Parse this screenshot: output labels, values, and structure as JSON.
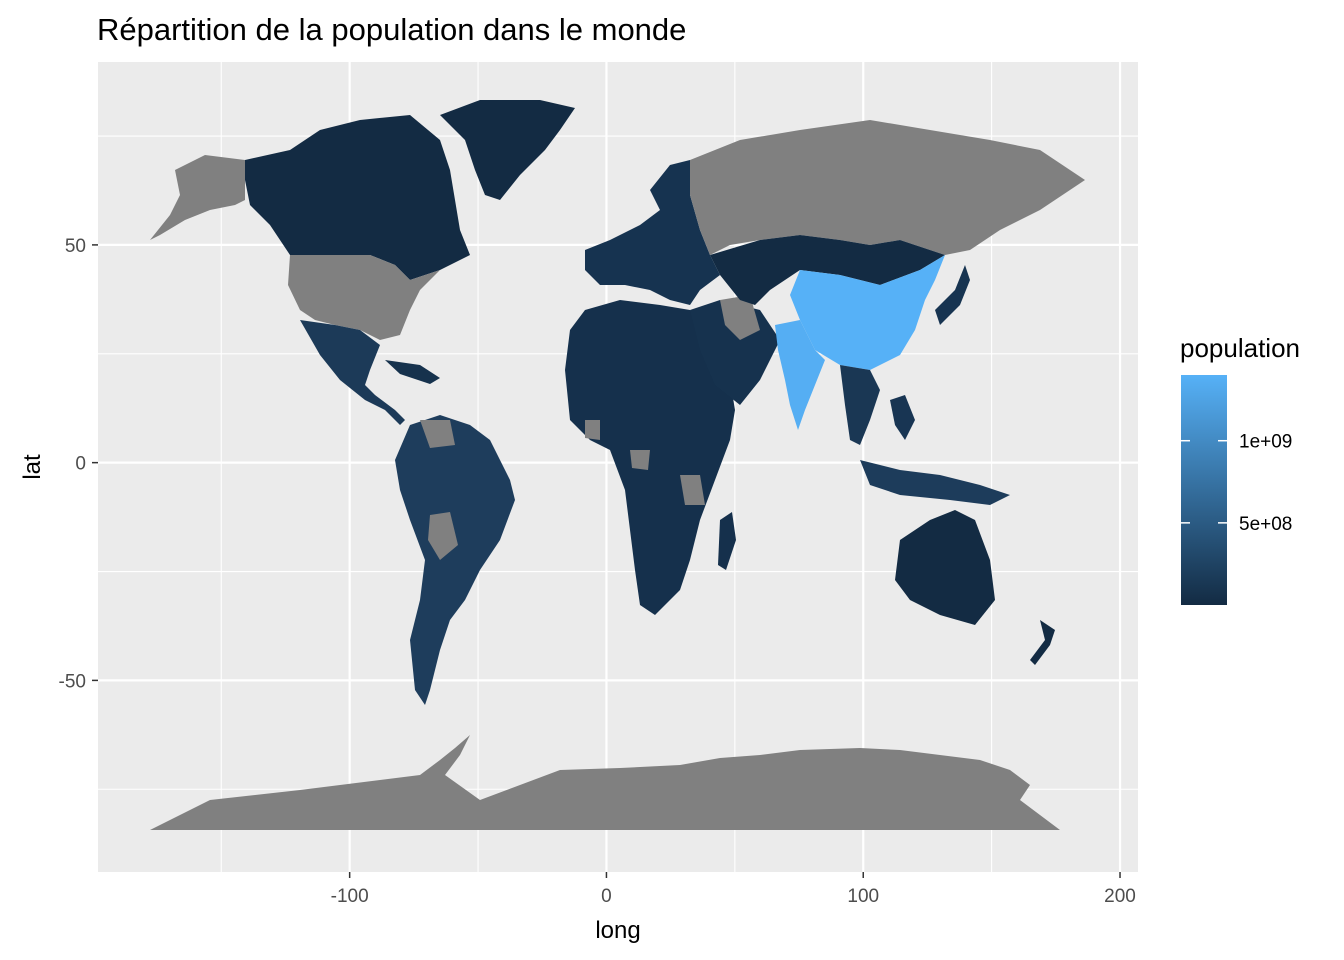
{
  "chart_data": {
    "type": "choropleth map",
    "title": "Répartition de la population dans le monde",
    "xlabel": "long",
    "ylabel": "lat",
    "xlim": [
      -198,
      207
    ],
    "ylim": [
      -94,
      92
    ],
    "x_ticks": [
      {
        "value": -100,
        "label": "-100"
      },
      {
        "value": 0,
        "label": "0"
      },
      {
        "value": 100,
        "label": "100"
      },
      {
        "value": 200,
        "label": "200"
      }
    ],
    "y_ticks": [
      {
        "value": -50,
        "label": "-50"
      },
      {
        "value": 0,
        "label": "0"
      },
      {
        "value": 50,
        "label": "50"
      }
    ],
    "grid": true,
    "legend": {
      "title": "population",
      "position": "right",
      "range": [
        0,
        1400000000
      ],
      "ticks": [
        {
          "value": 500000000,
          "label": "5e+08"
        },
        {
          "value": 1000000000,
          "label": "1e+09"
        }
      ],
      "low_color": "#132B43",
      "high_color": "#56B1F7",
      "na_color": "#808080"
    }
  },
  "colors": {
    "panel_background": "#ebebeb",
    "grid": "#ffffff",
    "ocean_free": "#ebebeb"
  }
}
